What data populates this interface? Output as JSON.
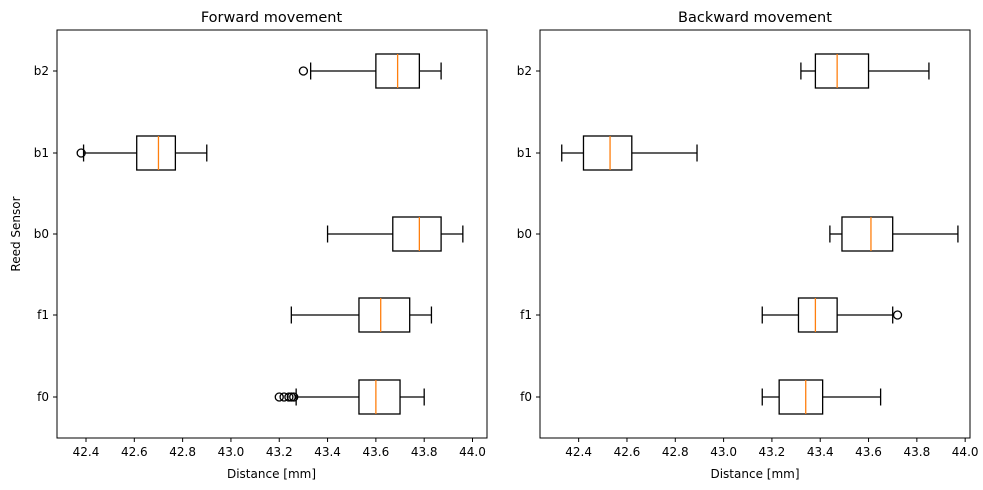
{
  "chart_data": [
    {
      "type": "boxplot",
      "orientation": "horizontal",
      "title": "Forward movement",
      "xlabel": "Distance [mm]",
      "ylabel": "Reed Sensor",
      "xlim": [
        42.28,
        44.06
      ],
      "xticks": [
        "42.4",
        "42.6",
        "42.8",
        "43.0",
        "43.2",
        "43.4",
        "43.6",
        "43.8",
        "44.0"
      ],
      "categories": [
        "f0",
        "f1",
        "b0",
        "b1",
        "b2"
      ],
      "boxes": [
        {
          "label": "f0",
          "whislo": 43.27,
          "q1": 43.53,
          "med": 43.6,
          "q3": 43.7,
          "whishi": 43.8,
          "fliers": [
            43.2,
            43.22,
            43.24,
            43.25,
            43.26
          ]
        },
        {
          "label": "f1",
          "whislo": 43.25,
          "q1": 43.53,
          "med": 43.62,
          "q3": 43.74,
          "whishi": 43.83,
          "fliers": []
        },
        {
          "label": "b0",
          "whislo": 43.4,
          "q1": 43.67,
          "med": 43.78,
          "q3": 43.87,
          "whishi": 43.96,
          "fliers": []
        },
        {
          "label": "b1",
          "whislo": 42.39,
          "q1": 42.61,
          "med": 42.7,
          "q3": 42.77,
          "whishi": 42.9,
          "fliers": [
            42.38
          ]
        },
        {
          "label": "b2",
          "whislo": 43.33,
          "q1": 43.6,
          "med": 43.69,
          "q3": 43.78,
          "whishi": 43.87,
          "fliers": [
            43.3
          ]
        }
      ]
    },
    {
      "type": "boxplot",
      "orientation": "horizontal",
      "title": "Backward movement",
      "xlabel": "Distance [mm]",
      "ylabel": "",
      "xlim": [
        42.24,
        44.02
      ],
      "xticks": [
        "42.4",
        "42.6",
        "42.8",
        "43.0",
        "43.2",
        "43.4",
        "43.6",
        "43.8",
        "44.0"
      ],
      "categories": [
        "f0",
        "f1",
        "b0",
        "b1",
        "b2"
      ],
      "boxes": [
        {
          "label": "f0",
          "whislo": 43.16,
          "q1": 43.23,
          "med": 43.34,
          "q3": 43.41,
          "whishi": 43.65,
          "fliers": []
        },
        {
          "label": "f1",
          "whislo": 43.16,
          "q1": 43.31,
          "med": 43.38,
          "q3": 43.47,
          "whishi": 43.7,
          "fliers": [
            43.72
          ]
        },
        {
          "label": "b0",
          "whislo": 43.44,
          "q1": 43.49,
          "med": 43.61,
          "q3": 43.7,
          "whishi": 43.97,
          "fliers": []
        },
        {
          "label": "b1",
          "whislo": 42.33,
          "q1": 42.42,
          "med": 42.53,
          "q3": 42.62,
          "whishi": 42.89,
          "fliers": []
        },
        {
          "label": "b2",
          "whislo": 43.32,
          "q1": 43.38,
          "med": 43.47,
          "q3": 43.6,
          "whishi": 43.85,
          "fliers": []
        }
      ]
    }
  ]
}
